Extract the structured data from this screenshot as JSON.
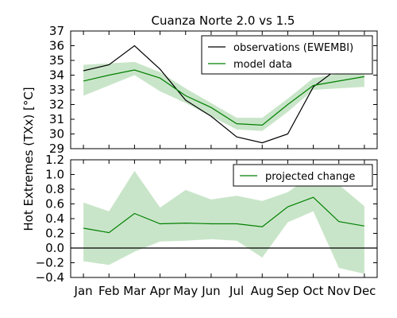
{
  "colors": {
    "observations": "#000000",
    "model": "#008000",
    "band": "#bfe0bf",
    "zero_line": "#000000"
  },
  "chart_data": {
    "type": "line",
    "title": "Cuanza Norte 2.0 vs 1.5",
    "ylabel": "Hot Extremes (TXx) [$^\\circ C$]",
    "ylabel_display": "Hot Extremes (TXx) [°C]",
    "categories": [
      "Jan",
      "Feb",
      "Mar",
      "Apr",
      "May",
      "Jun",
      "Jul",
      "Aug",
      "Sep",
      "Oct",
      "Nov",
      "Dec"
    ],
    "panels": [
      {
        "name": "top",
        "ylim": [
          29,
          37
        ],
        "yticks": [
          "29",
          "30",
          "31",
          "32",
          "33",
          "34",
          "35",
          "36",
          "37"
        ],
        "series": [
          {
            "name": "observations (EWEMBI)",
            "color": "#000000",
            "values": [
              34.3,
              34.7,
              36.0,
              34.4,
              32.3,
              31.2,
              29.8,
              29.4,
              30.0,
              33.2,
              34.5,
              34.3
            ]
          },
          {
            "name": "model data",
            "color": "#008000",
            "values": [
              33.6,
              34.0,
              34.35,
              33.8,
              32.6,
              31.8,
              30.7,
              30.6,
              32.0,
              33.3,
              33.6,
              33.9
            ],
            "band_low": [
              32.6,
              33.3,
              34.0,
              32.9,
              32.1,
              31.2,
              30.3,
              30.2,
              31.5,
              33.0,
              33.1,
              33.2
            ],
            "band_high": [
              34.7,
              34.8,
              34.9,
              34.2,
              33.1,
              32.1,
              31.1,
              31.1,
              32.4,
              33.8,
              34.1,
              34.6
            ]
          }
        ],
        "legend": [
          "observations (EWEMBI)",
          "model data"
        ],
        "legend_position": "top-right"
      },
      {
        "name": "bottom",
        "ylim": [
          -0.4,
          1.2
        ],
        "yticks": [
          "−0.4",
          "−0.2",
          "0.0",
          "0.2",
          "0.4",
          "0.6",
          "0.8",
          "1.0",
          "1.2"
        ],
        "zero_line": true,
        "series": [
          {
            "name": "projected change",
            "color": "#008000",
            "values": [
              0.27,
              0.21,
              0.47,
              0.33,
              0.34,
              0.33,
              0.33,
              0.29,
              0.56,
              0.69,
              0.36,
              0.3
            ],
            "band_low": [
              -0.18,
              -0.23,
              -0.05,
              0.09,
              0.1,
              0.12,
              0.1,
              -0.13,
              0.35,
              0.5,
              -0.27,
              -0.35
            ],
            "band_high": [
              0.62,
              0.5,
              1.05,
              0.55,
              0.79,
              0.66,
              0.71,
              0.64,
              0.76,
              1.0,
              0.86,
              0.57
            ]
          }
        ],
        "legend": [
          "projected change"
        ],
        "legend_position": "top-right"
      }
    ]
  }
}
